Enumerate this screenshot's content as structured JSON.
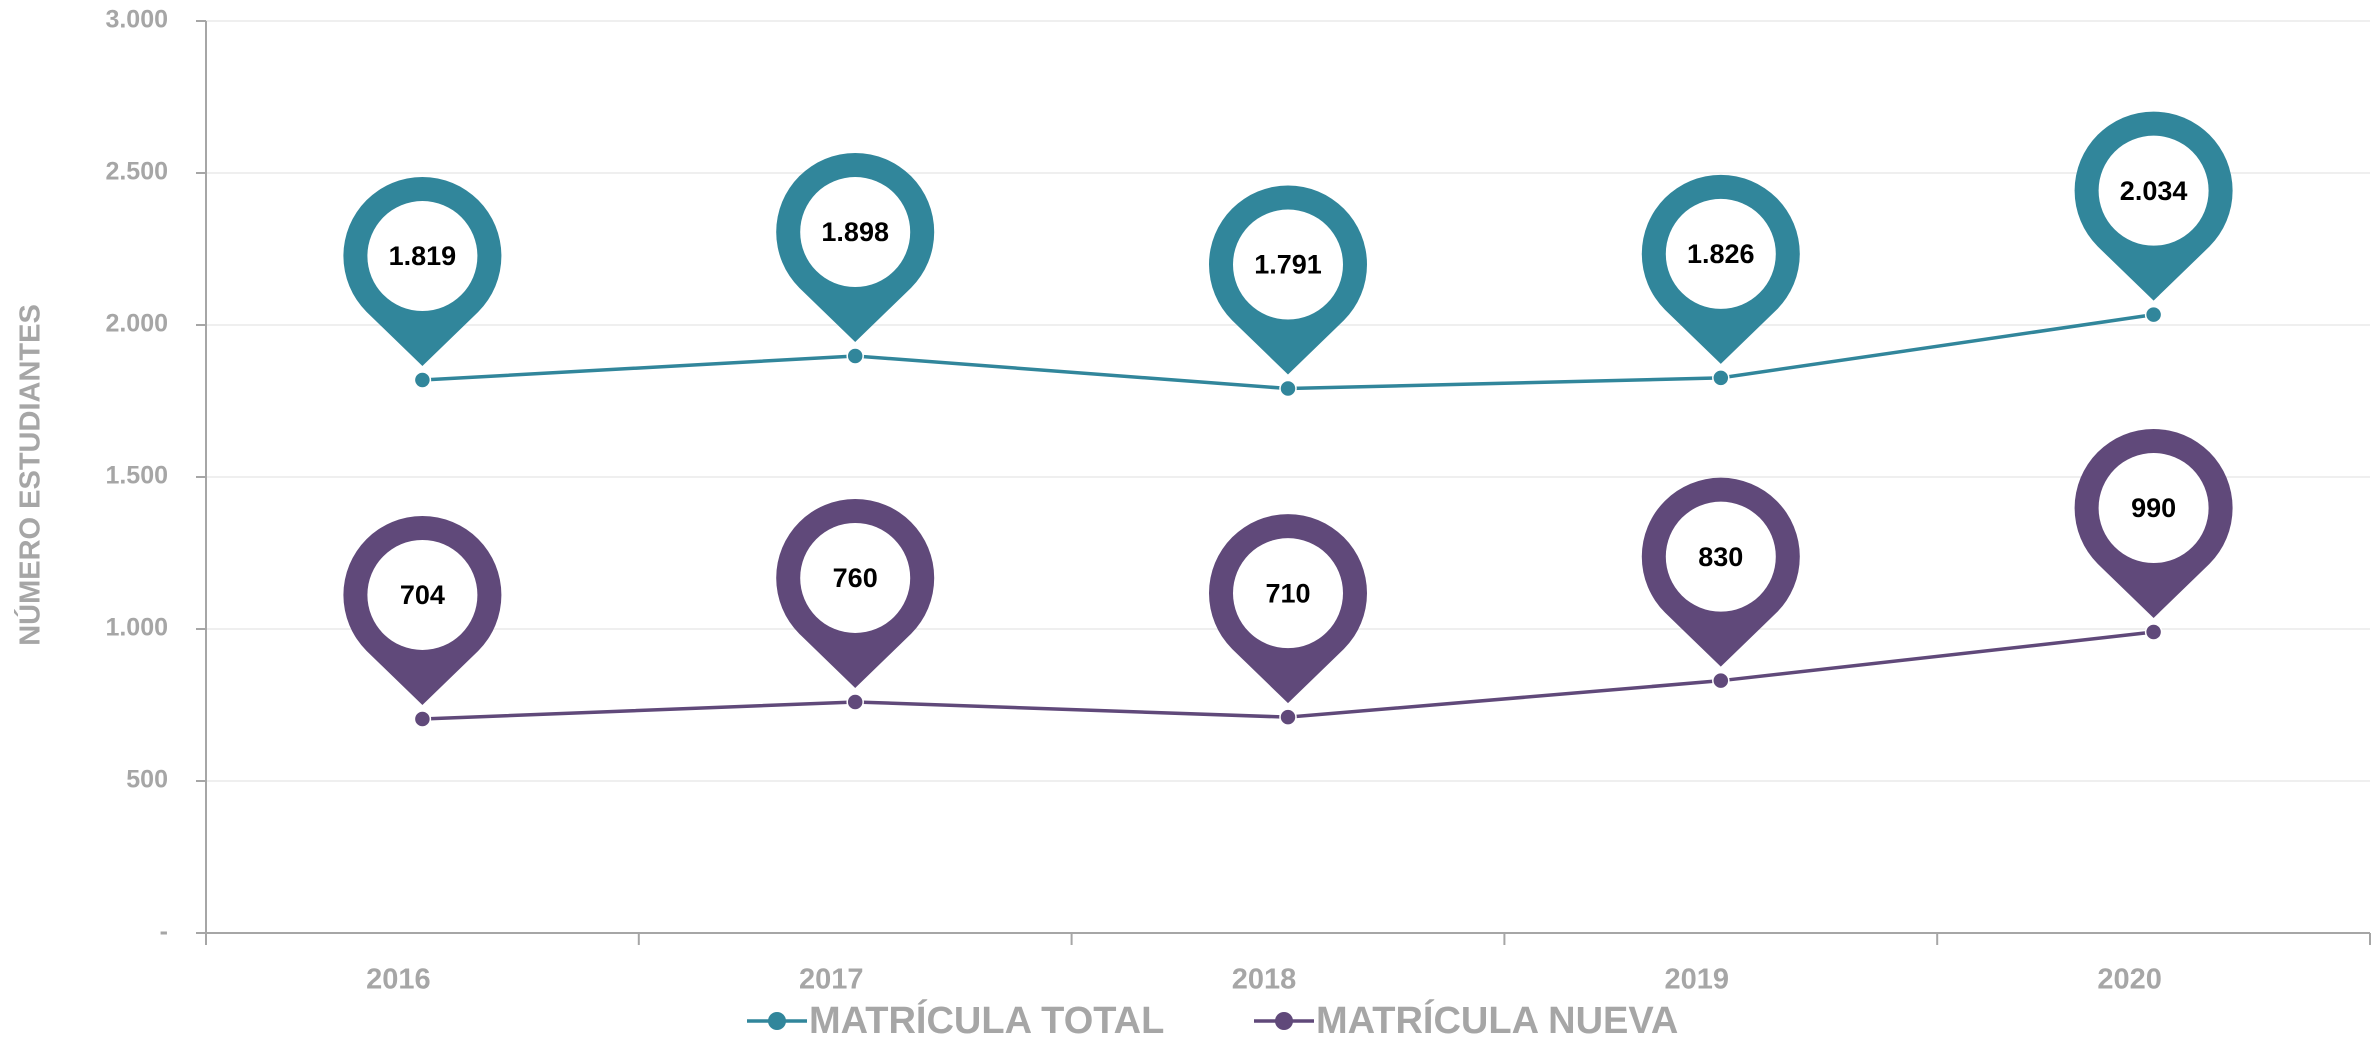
{
  "chart_data": {
    "type": "line",
    "y_axis_label": "NÚMERO ESTUDIANTES",
    "categories": [
      "2016",
      "2017",
      "2018",
      "2019",
      "2020"
    ],
    "series": [
      {
        "name": "MATRÍCULA TOTAL",
        "color": "#31869b",
        "values": [
          1819,
          1898,
          1791,
          1826,
          2034
        ],
        "value_labels": [
          "1.819",
          "1.898",
          "1.791",
          "1.826",
          "2.034"
        ]
      },
      {
        "name": "MATRÍCULA NUEVA",
        "color": "#60497a",
        "values": [
          704,
          760,
          710,
          830,
          990
        ],
        "value_labels": [
          "704",
          "760",
          "710",
          "830",
          "990"
        ]
      }
    ],
    "ylim": [
      0,
      3000
    ],
    "yticks": [
      {
        "value": 0,
        "label": "-"
      },
      500,
      {
        "value": 1000,
        "label": "1.000"
      },
      {
        "value": 1500,
        "label": "1.500"
      },
      {
        "value": 2000,
        "label": "2.000"
      },
      {
        "value": 2500,
        "label": "2.500"
      },
      {
        "value": 3000,
        "label": "3.000"
      }
    ],
    "grid": true,
    "legend": "bottom"
  }
}
